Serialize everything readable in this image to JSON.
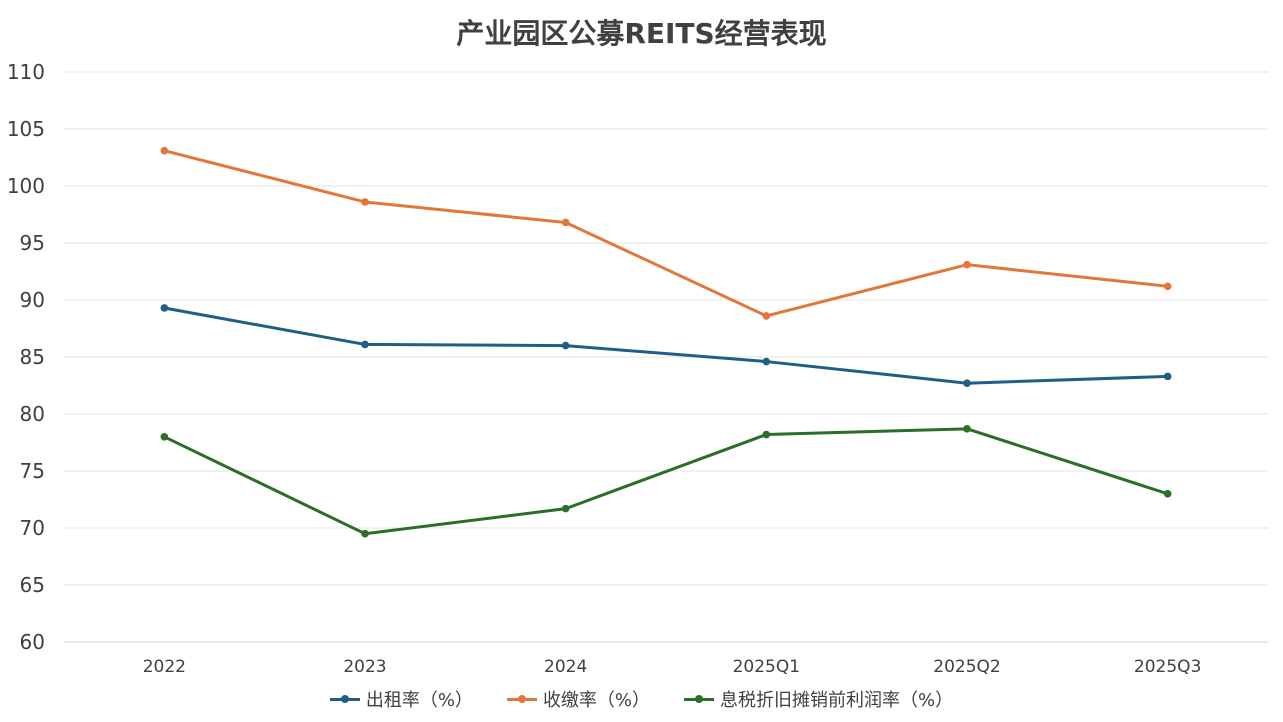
{
  "chart_data": {
    "type": "line",
    "title": "产业园区公募REITS经营表现",
    "categories": [
      "2022",
      "2023",
      "2024",
      "2025Q1",
      "2025Q2",
      "2025Q3"
    ],
    "ylim": [
      60,
      110
    ],
    "yticks": [
      60,
      65,
      70,
      75,
      80,
      85,
      90,
      95,
      100,
      105,
      110
    ],
    "grid": true,
    "legend_position": "bottom",
    "series": [
      {
        "name": "出租率（%）",
        "color": "#1f5f86",
        "values": [
          89.3,
          86.1,
          86.0,
          84.6,
          82.7,
          83.3
        ]
      },
      {
        "name": "收缴率（%）",
        "color": "#e2773a",
        "values": [
          103.1,
          98.6,
          96.8,
          88.6,
          93.1,
          91.2
        ]
      },
      {
        "name": "息税折旧摊销前利润率（%）",
        "color": "#2a6f27",
        "values": [
          78.0,
          69.5,
          71.7,
          78.2,
          78.7,
          73.0
        ]
      }
    ]
  }
}
